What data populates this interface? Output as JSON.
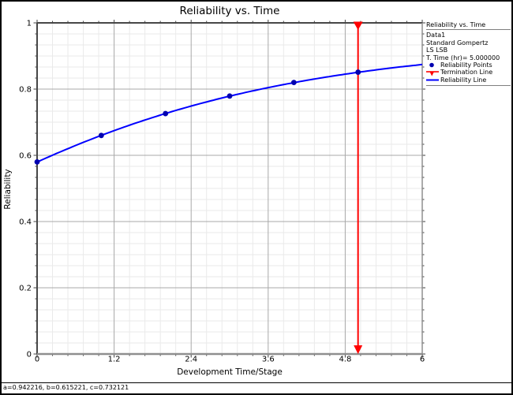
{
  "window": {
    "status_bar": "a=0.942216, b=0.615221, c=0.732121"
  },
  "chart": {
    "title": "Reliability vs. Time",
    "x_axis_title": "Development Time/Stage",
    "y_axis_title": "Reliability"
  },
  "legend": {
    "title": "Reliability vs. Time",
    "info_lines": [
      "Data1",
      "Standard Gompertz",
      "LS LSB",
      "T. Time (hr)= 5.000000"
    ],
    "items": [
      {
        "label": "Reliability Points",
        "marker": "point",
        "color": "#0000b0"
      },
      {
        "label": "Termination Line",
        "marker": "arrow-line",
        "color": "#ff0000"
      },
      {
        "label": "Reliability Line",
        "marker": "line",
        "color": "#0000ff"
      }
    ]
  },
  "chart_data": {
    "type": "line",
    "title": "Reliability vs. Time",
    "xlabel": "Development Time/Stage",
    "ylabel": "Reliability",
    "xlim": [
      0,
      6
    ],
    "ylim": [
      0,
      1
    ],
    "x_ticks": [
      0,
      1.2,
      2.4,
      3.6,
      4.8,
      6
    ],
    "x_tick_labels": [
      "0",
      "1.2",
      "2.4",
      "3.6",
      "4.8",
      "6"
    ],
    "y_ticks": [
      0,
      0.2,
      0.4,
      0.6,
      0.8,
      1
    ],
    "y_tick_labels": [
      "0",
      "0.2",
      "0.4",
      "0.6",
      "0.8",
      "1"
    ],
    "x_minor_divisions": 5,
    "y_minor_divisions": 6,
    "grid": true,
    "legend_position": "top-right",
    "series": [
      {
        "name": "Reliability Points",
        "type": "scatter",
        "x": [
          0,
          1,
          2,
          3,
          4,
          5
        ],
        "y": [
          0.58,
          0.66,
          0.726,
          0.779,
          0.82,
          0.851
        ],
        "color": "#0000b0"
      },
      {
        "name": "Reliability Line",
        "type": "line",
        "model": "Standard Gompertz",
        "params": {
          "a": 0.942216,
          "b": 0.615221,
          "c": 0.732121
        },
        "x_range": [
          0,
          6
        ],
        "color": "#0000ff"
      },
      {
        "name": "Termination Line",
        "type": "vline",
        "x": 5.0,
        "color": "#ff0000"
      }
    ]
  },
  "colors": {
    "background": "#ffffff",
    "grid_major": "#a8a8a8",
    "grid_minor": "#eaeaea",
    "frame_dark": "#474747",
    "frame_light": "#8f8f8f",
    "tick": "#404040",
    "text": "#000000"
  }
}
